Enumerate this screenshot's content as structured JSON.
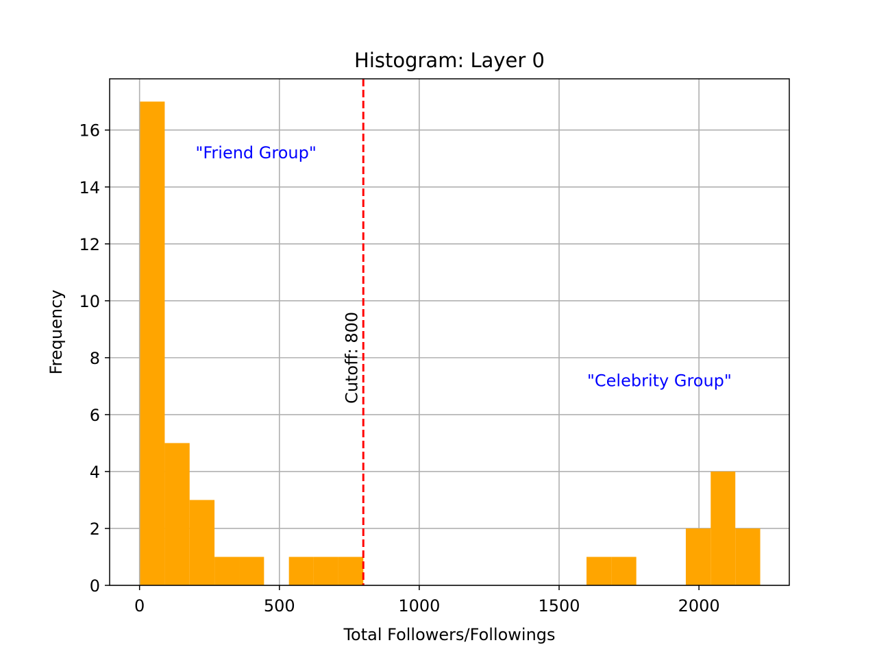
{
  "chart_data": {
    "type": "bar",
    "title": "Histogram: Layer 0",
    "xlabel": "Total Followers/Followings",
    "ylabel": "Frequency",
    "xlim": [
      -107,
      2323
    ],
    "ylim": [
      0,
      17.8
    ],
    "x_ticks": [
      0,
      500,
      1000,
      1500,
      2000
    ],
    "y_ticks": [
      0,
      2,
      4,
      6,
      8,
      10,
      12,
      14,
      16
    ],
    "grid": true,
    "bar_color": "#ffa500",
    "bins": [
      {
        "x0": 2,
        "x1": 90,
        "count": 17
      },
      {
        "x0": 90,
        "x1": 179,
        "count": 5
      },
      {
        "x0": 179,
        "x1": 268,
        "count": 3
      },
      {
        "x0": 268,
        "x1": 356,
        "count": 1
      },
      {
        "x0": 356,
        "x1": 445,
        "count": 1
      },
      {
        "x0": 445,
        "x1": 534,
        "count": 0
      },
      {
        "x0": 534,
        "x1": 622,
        "count": 1
      },
      {
        "x0": 622,
        "x1": 711,
        "count": 1
      },
      {
        "x0": 711,
        "x1": 800,
        "count": 1
      },
      {
        "x0": 800,
        "x1": 889,
        "count": 0
      },
      {
        "x0": 889,
        "x1": 977,
        "count": 0
      },
      {
        "x0": 977,
        "x1": 1066,
        "count": 0
      },
      {
        "x0": 1066,
        "x1": 1155,
        "count": 0
      },
      {
        "x0": 1155,
        "x1": 1243,
        "count": 0
      },
      {
        "x0": 1243,
        "x1": 1332,
        "count": 0
      },
      {
        "x0": 1332,
        "x1": 1421,
        "count": 0
      },
      {
        "x0": 1421,
        "x1": 1509,
        "count": 0
      },
      {
        "x0": 1509,
        "x1": 1598,
        "count": 0
      },
      {
        "x0": 1598,
        "x1": 1687,
        "count": 1
      },
      {
        "x0": 1687,
        "x1": 1776,
        "count": 1
      },
      {
        "x0": 1776,
        "x1": 1864,
        "count": 0
      },
      {
        "x0": 1864,
        "x1": 1953,
        "count": 0
      },
      {
        "x0": 1953,
        "x1": 2042,
        "count": 2
      },
      {
        "x0": 2042,
        "x1": 2130,
        "count": 4
      },
      {
        "x0": 2130,
        "x1": 2219,
        "count": 2
      }
    ],
    "cutoff": {
      "x": 800,
      "label": "Cutoff: 800",
      "color": "#ff0000"
    },
    "annotations": [
      {
        "text": "\"Friend Group\"",
        "x": 200,
        "y": 15,
        "color": "#0000ff"
      },
      {
        "text": "\"Celebrity Group\"",
        "x": 1600,
        "y": 7,
        "color": "#0000ff"
      }
    ]
  }
}
